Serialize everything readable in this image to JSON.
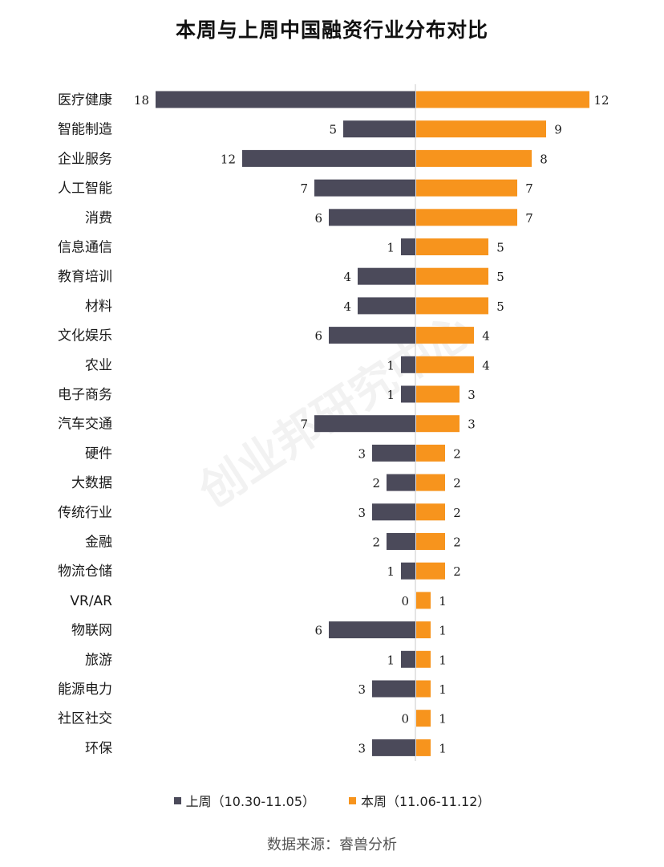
{
  "chart_data": {
    "type": "bar",
    "orientation": "horizontal-diverging",
    "title": "本周与上周中国融资行业分布对比",
    "categories": [
      "医疗健康",
      "智能制造",
      "企业服务",
      "人工智能",
      "消费",
      "信息通信",
      "教育培训",
      "材料",
      "文化娱乐",
      "农业",
      "电子商务",
      "汽车交通",
      "硬件",
      "大数据",
      "传统行业",
      "金融",
      "物流仓储",
      "VR/AR",
      "物联网",
      "旅游",
      "能源电力",
      "社区社交",
      "环保"
    ],
    "series": [
      {
        "name": "上周（10.30-11.05）",
        "color": "#4b4a5a",
        "direction": "left",
        "values": [
          18,
          5,
          12,
          7,
          6,
          1,
          4,
          4,
          6,
          1,
          1,
          7,
          3,
          2,
          3,
          2,
          1,
          0,
          6,
          1,
          3,
          0,
          3
        ]
      },
      {
        "name": "本周（11.06-11.12）",
        "color": "#f7941d",
        "direction": "right",
        "values": [
          12,
          9,
          8,
          7,
          7,
          5,
          5,
          5,
          4,
          4,
          3,
          3,
          2,
          2,
          2,
          2,
          2,
          1,
          1,
          1,
          1,
          1,
          1
        ]
      }
    ],
    "legend_position": "bottom",
    "grid": false
  },
  "source_text": "数据来源：睿兽分析",
  "watermark_text": "创业邦研究中心"
}
